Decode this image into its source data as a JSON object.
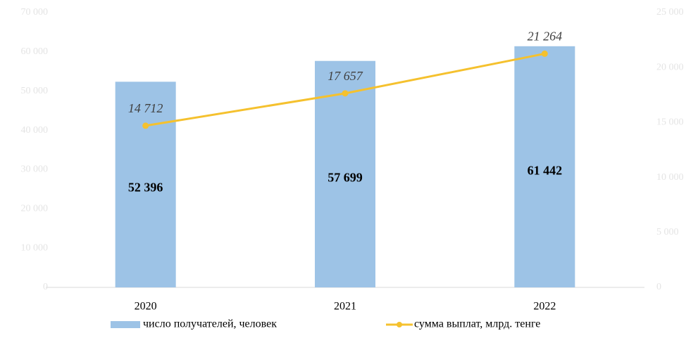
{
  "chart_data": {
    "type": "bar",
    "categories": [
      "2020",
      "2021",
      "2022"
    ],
    "series": [
      {
        "name": "число получателей, человек",
        "type": "bar",
        "color": "#9dc3e6",
        "values": [
          52396,
          57699,
          61442
        ],
        "value_labels": [
          "52 396",
          "57 699",
          "61 442"
        ]
      },
      {
        "name": "сумма выплат, млрд. тенге",
        "type": "line",
        "axis": "y2",
        "color": "#f5c12e",
        "values": [
          14712,
          17657,
          21264
        ],
        "value_labels": [
          "14 712",
          "17 657",
          "21 264"
        ]
      }
    ],
    "ylim": [
      0,
      70000
    ],
    "yticks": [
      0,
      {
        "value": 10000,
        "label": "10 000"
      },
      {
        "value": 20000,
        "label": "20 000"
      },
      {
        "value": 30000,
        "label": "30 000"
      },
      {
        "value": 40000,
        "label": "40 000"
      },
      {
        "value": 50000,
        "label": "50 000"
      },
      {
        "value": 60000,
        "label": "60 000"
      },
      {
        "value": 70000,
        "label": "70 000"
      }
    ],
    "y2lim": [
      0,
      25000
    ],
    "y2ticks": [
      0,
      {
        "value": 5000,
        "label": "5 000"
      },
      {
        "value": 10000,
        "label": "10 000"
      },
      {
        "value": 15000,
        "label": "15 000"
      },
      {
        "value": 20000,
        "label": "20 000"
      },
      {
        "value": 25000,
        "label": "25 000"
      }
    ],
    "grid": false,
    "legend": "bottom"
  }
}
